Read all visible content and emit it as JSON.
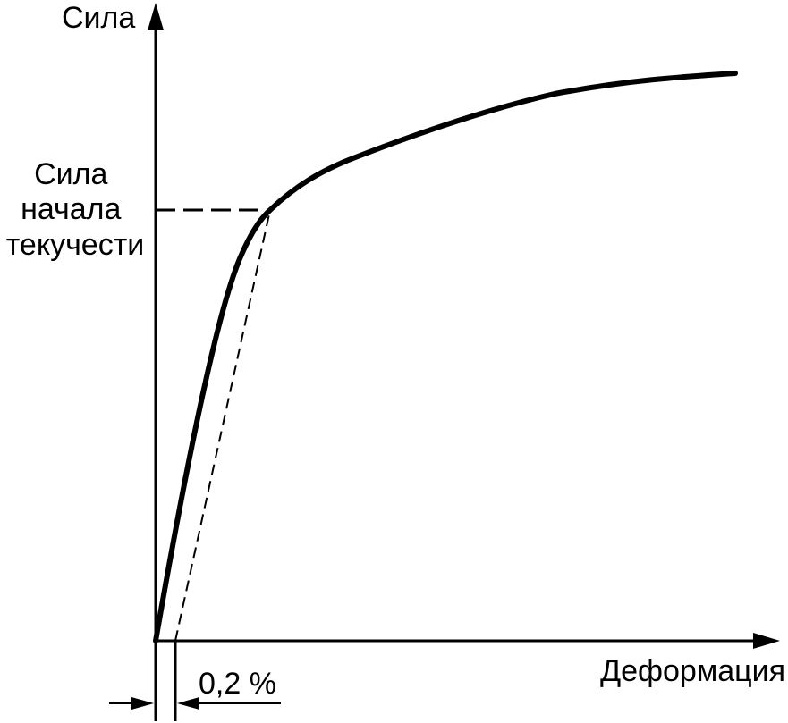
{
  "diagram": {
    "y_axis_label": "Сила",
    "x_axis_label": "Деформация",
    "yield_label_lines": [
      "Сила",
      "начала",
      "текучести"
    ],
    "offset_label": "0,2 %"
  },
  "colors": {
    "stroke": "#000000",
    "background": "#ffffff"
  }
}
